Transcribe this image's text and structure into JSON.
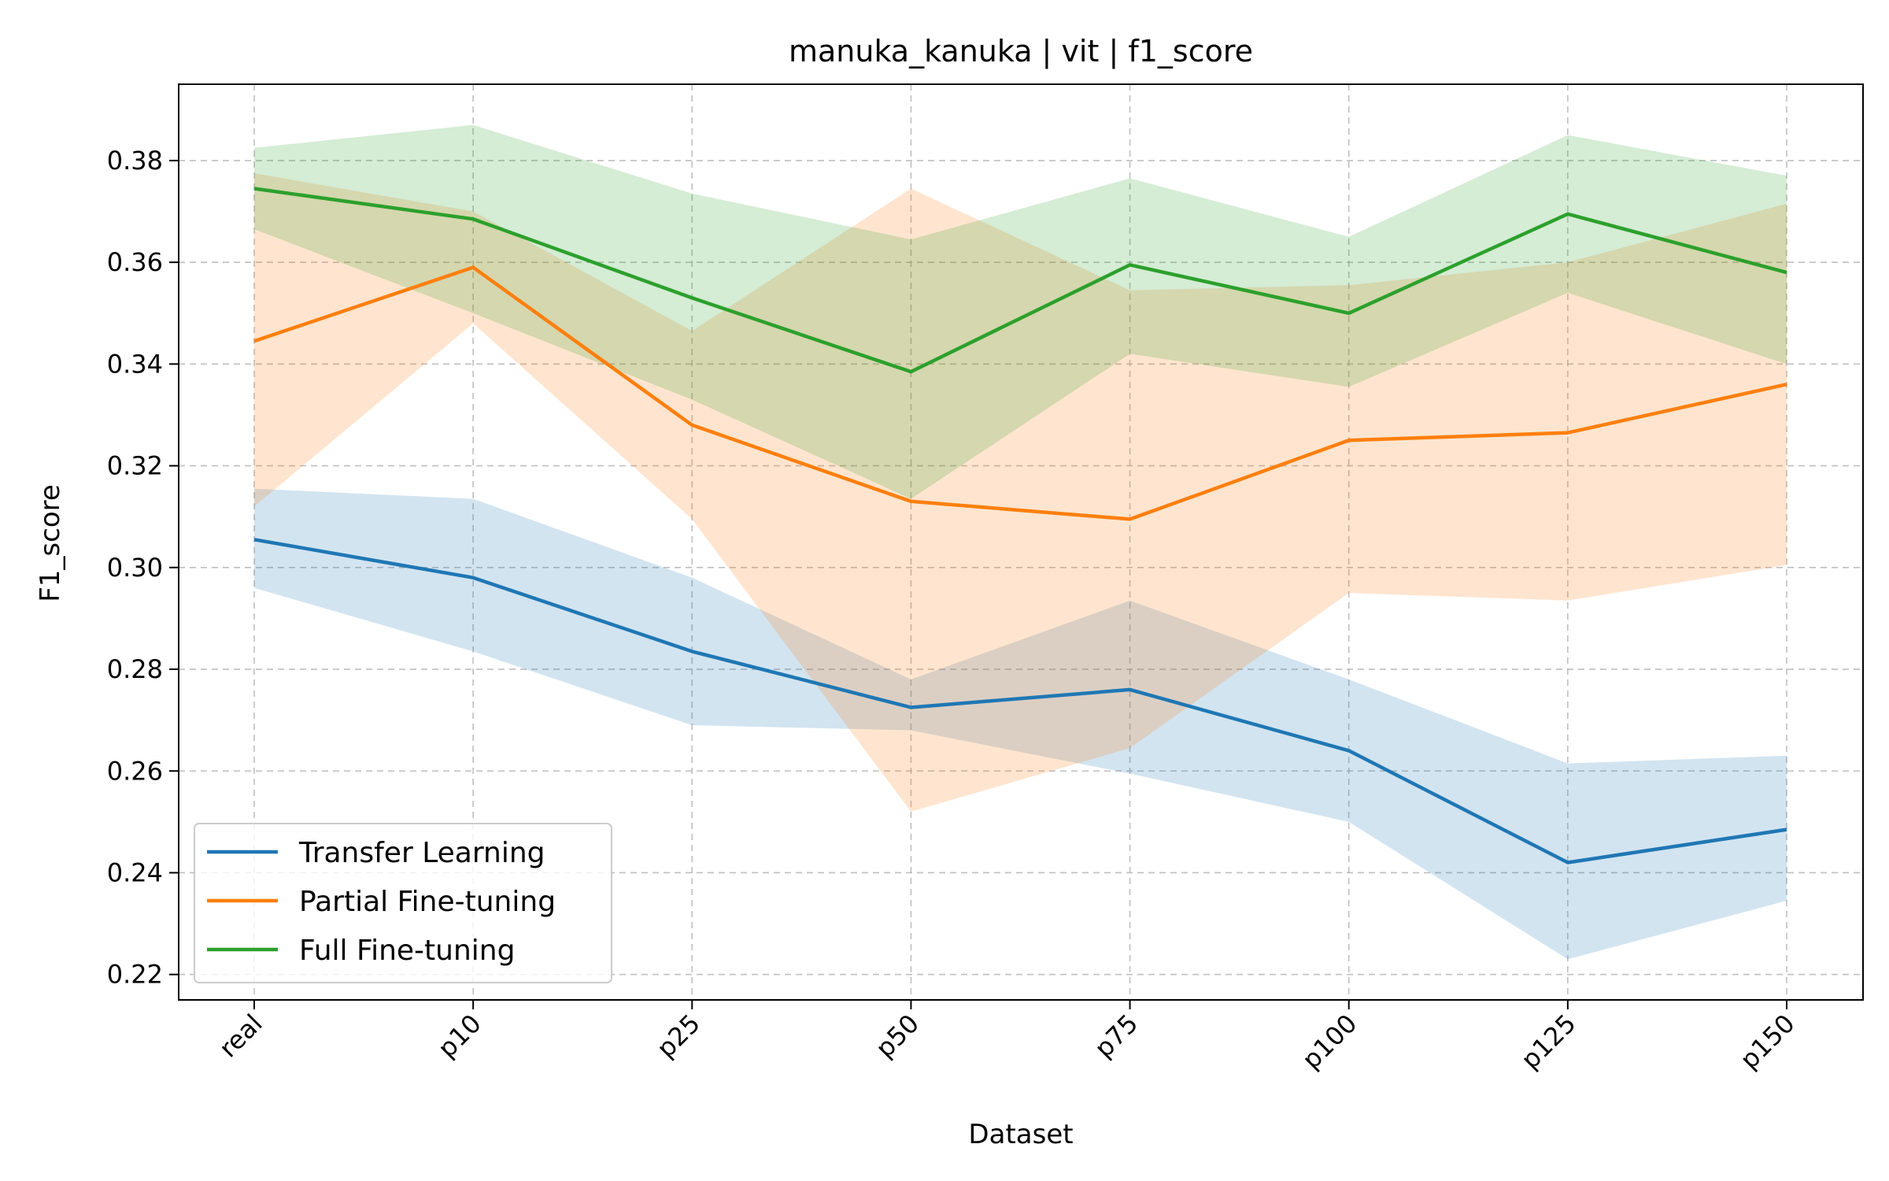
{
  "chart_data": {
    "type": "line",
    "title": "manuka_kanuka | vit | f1_score",
    "xlabel": "Dataset",
    "ylabel": "F1_score",
    "categories": [
      "real",
      "p10",
      "p25",
      "p50",
      "p75",
      "p100",
      "p125",
      "p150"
    ],
    "ylim": [
      0.215,
      0.395
    ],
    "yticks": [
      0.22,
      0.24,
      0.26,
      0.28,
      0.3,
      0.32,
      0.34,
      0.36,
      0.38
    ],
    "ytick_labels": [
      "0.22",
      "0.24",
      "0.26",
      "0.28",
      "0.30",
      "0.32",
      "0.34",
      "0.36",
      "0.38"
    ],
    "grid": true,
    "legend_position": "lower-left",
    "series": [
      {
        "name": "Transfer Learning",
        "color": "#1f77b4",
        "values": [
          0.3055,
          0.298,
          0.2835,
          0.2725,
          0.276,
          0.264,
          0.242,
          0.2485
        ],
        "lower": [
          0.296,
          0.2835,
          0.269,
          0.268,
          0.2595,
          0.25,
          0.223,
          0.2345
        ],
        "upper": [
          0.3155,
          0.3135,
          0.298,
          0.278,
          0.2935,
          0.278,
          0.2615,
          0.263
        ]
      },
      {
        "name": "Partial Fine-tuning",
        "color": "#ff7f0e",
        "values": [
          0.3445,
          0.359,
          0.328,
          0.313,
          0.3095,
          0.325,
          0.3265,
          0.336
        ],
        "lower": [
          0.312,
          0.348,
          0.3095,
          0.252,
          0.2645,
          0.295,
          0.2935,
          0.3005
        ],
        "upper": [
          0.3775,
          0.37,
          0.3465,
          0.3745,
          0.3545,
          0.3555,
          0.36,
          0.3715
        ]
      },
      {
        "name": "Full Fine-tuning",
        "color": "#2ca02c",
        "values": [
          0.3745,
          0.3685,
          0.353,
          0.3385,
          0.3595,
          0.35,
          0.3695,
          0.358
        ],
        "lower": [
          0.3665,
          0.35,
          0.333,
          0.3135,
          0.342,
          0.3355,
          0.354,
          0.34
        ],
        "upper": [
          0.3825,
          0.387,
          0.3735,
          0.3645,
          0.3765,
          0.365,
          0.385,
          0.377
        ]
      }
    ]
  }
}
